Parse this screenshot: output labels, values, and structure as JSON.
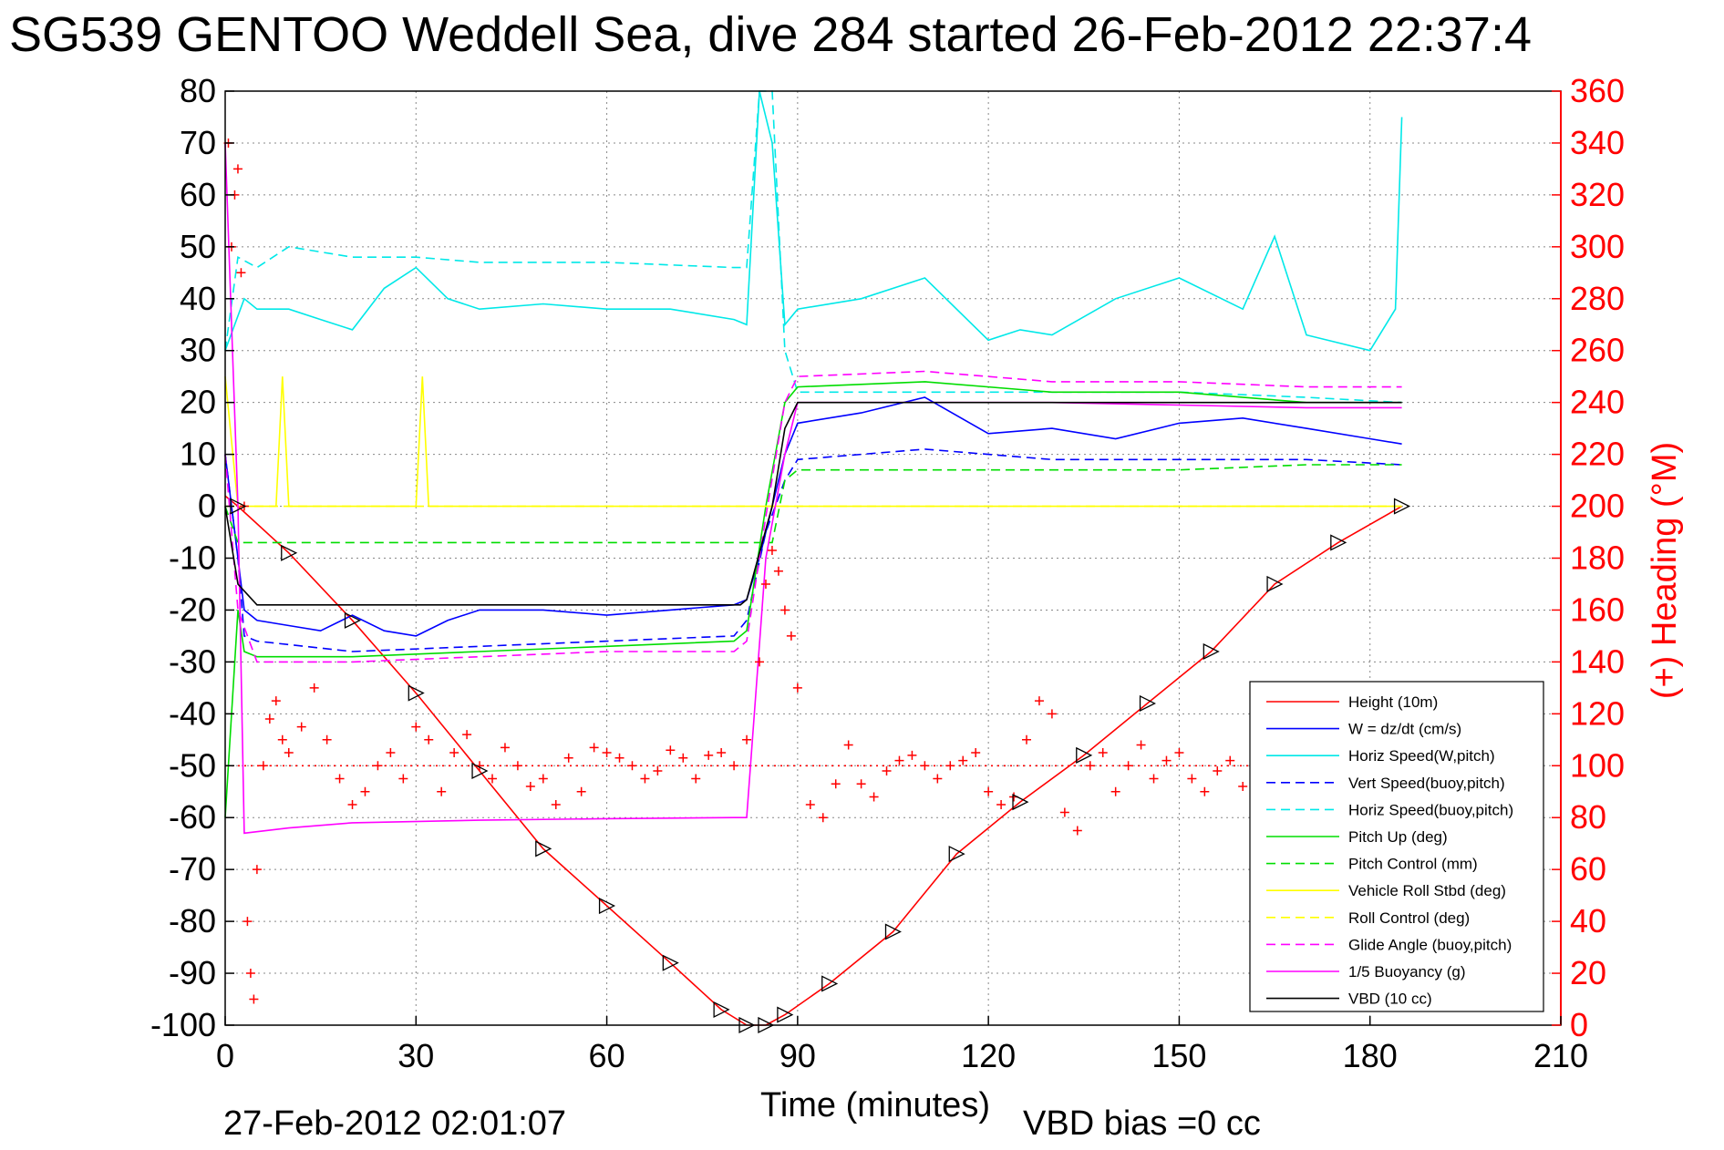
{
  "chart_data": {
    "type": "line",
    "title": "SG539 GENTOO Weddell Sea, dive 284 started 26-Feb-2012 22:37:4",
    "xlabel": "Time (minutes)",
    "ylabel_right": "(+) Heading (°M)",
    "xlim": [
      0,
      210
    ],
    "ylim_left": [
      -100,
      80
    ],
    "ylim_right": [
      0,
      360
    ],
    "x_ticks": [
      "0",
      "30",
      "60",
      "90",
      "120",
      "150",
      "180",
      "210"
    ],
    "y_ticks_left": [
      "80",
      "70",
      "60",
      "50",
      "40",
      "30",
      "20",
      "10",
      "0",
      "-10",
      "-20",
      "-30",
      "-40",
      "-50",
      "-60",
      "-70",
      "-80",
      "-90",
      "-100"
    ],
    "y_ticks_right": [
      "360",
      "340",
      "320",
      "300",
      "280",
      "260",
      "240",
      "220",
      "200",
      "180",
      "160",
      "140",
      "120",
      "100",
      "80",
      "60",
      "40",
      "20",
      "0"
    ],
    "grid": true,
    "legend_position": "lower-right",
    "footer_left": "27-Feb-2012 02:01:07",
    "footer_right": "VBD bias =0 cc",
    "series": [
      {
        "name": "Height (10m)",
        "color": "#ff0000",
        "style": "solid",
        "axis": "left",
        "x": [
          0,
          2,
          10,
          20,
          30,
          40,
          50,
          60,
          70,
          78,
          82,
          85,
          88,
          95,
          105,
          115,
          125,
          135,
          145,
          155,
          165,
          175,
          185
        ],
        "y": [
          2,
          0,
          -9,
          -22,
          -36,
          -51,
          -66,
          -77,
          -88,
          -97,
          -100,
          -100,
          -98,
          -92,
          -82,
          -67,
          -57,
          -48,
          -38,
          -28,
          -15,
          -7,
          0
        ]
      },
      {
        "name": "W = dz/dt (cm/s)",
        "color": "#0000ff",
        "style": "solid",
        "axis": "left",
        "x": [
          0,
          2,
          3,
          5,
          10,
          15,
          20,
          25,
          30,
          35,
          40,
          50,
          60,
          70,
          80,
          82,
          84,
          86,
          88,
          90,
          100,
          110,
          120,
          130,
          140,
          150,
          160,
          170,
          180,
          185
        ],
        "y": [
          10,
          -10,
          -20,
          -22,
          -23,
          -24,
          -21,
          -24,
          -25,
          -22,
          -20,
          -20,
          -21,
          -20,
          -19,
          -18,
          -10,
          0,
          10,
          16,
          18,
          21,
          14,
          15,
          13,
          16,
          17,
          15,
          13,
          12
        ]
      },
      {
        "name": "Horiz Speed(W,pitch)",
        "color": "#00e8e8",
        "style": "solid",
        "axis": "left",
        "x": [
          0,
          3,
          5,
          10,
          15,
          20,
          25,
          30,
          35,
          40,
          50,
          60,
          70,
          80,
          82,
          84,
          86,
          88,
          90,
          100,
          110,
          120,
          125,
          130,
          140,
          150,
          160,
          165,
          170,
          180,
          184,
          185
        ],
        "y": [
          30,
          40,
          38,
          38,
          36,
          34,
          42,
          46,
          40,
          38,
          39,
          38,
          38,
          36,
          35,
          80,
          70,
          35,
          38,
          40,
          44,
          32,
          34,
          33,
          40,
          44,
          38,
          52,
          33,
          30,
          38,
          75
        ]
      },
      {
        "name": "Vert Speed(buoy,pitch)",
        "color": "#0000ff",
        "style": "dash",
        "axis": "left",
        "x": [
          0,
          2,
          3,
          5,
          20,
          40,
          60,
          80,
          82,
          85,
          88,
          90,
          110,
          130,
          150,
          170,
          185
        ],
        "y": [
          10,
          -10,
          -25,
          -26,
          -28,
          -27,
          -26,
          -25,
          -22,
          -5,
          5,
          9,
          11,
          9,
          9,
          9,
          8
        ]
      },
      {
        "name": "Horiz Speed(buoy,pitch)",
        "color": "#00e8e8",
        "style": "dash",
        "axis": "left",
        "x": [
          0,
          2,
          5,
          10,
          20,
          30,
          40,
          60,
          80,
          82,
          84,
          86,
          88,
          90,
          110,
          130,
          150,
          170,
          185
        ],
        "y": [
          30,
          48,
          46,
          50,
          48,
          48,
          47,
          47,
          46,
          46,
          80,
          80,
          30,
          22,
          22,
          22,
          22,
          21,
          20
        ]
      },
      {
        "name": "Pitch Up (deg)",
        "color": "#00dd00",
        "style": "solid",
        "axis": "left",
        "x": [
          0,
          2,
          3,
          5,
          20,
          40,
          60,
          80,
          82,
          85,
          88,
          90,
          110,
          130,
          150,
          170,
          185
        ],
        "y": [
          -60,
          -20,
          -28,
          -29,
          -29,
          -28,
          -27,
          -26,
          -24,
          0,
          20,
          23,
          24,
          22,
          22,
          20,
          20
        ]
      },
      {
        "name": "Pitch Control (mm)",
        "color": "#00dd00",
        "style": "dash",
        "axis": "left",
        "x": [
          0,
          2,
          5,
          40,
          80,
          82,
          86,
          88,
          90,
          110,
          130,
          150,
          170,
          185
        ],
        "y": [
          0,
          -7,
          -7,
          -7,
          -7,
          -7,
          -7,
          5,
          7,
          7,
          7,
          7,
          8,
          8
        ]
      },
      {
        "name": "Vehicle Roll Stbd (deg)",
        "color": "#ffff00",
        "style": "solid",
        "axis": "left",
        "x": [
          0,
          2,
          5,
          8,
          9,
          10,
          20,
          30,
          31,
          32,
          40,
          60,
          80,
          90,
          100,
          120,
          140,
          160,
          180,
          185
        ],
        "y": [
          25,
          0,
          0,
          0,
          25,
          0,
          0,
          0,
          25,
          0,
          0,
          0,
          0,
          0,
          0,
          0,
          0,
          0,
          0,
          0
        ]
      },
      {
        "name": "Roll Control (deg)",
        "color": "#ffff00",
        "style": "dash",
        "axis": "left",
        "x": [
          0,
          5,
          20,
          40,
          60,
          80,
          90,
          120,
          150,
          180,
          185
        ],
        "y": [
          0,
          0,
          0,
          0,
          0,
          0,
          0,
          0,
          0,
          0,
          0
        ]
      },
      {
        "name": "Glide Angle (buoy,pitch)",
        "color": "#ff00ff",
        "style": "dash",
        "axis": "left",
        "x": [
          0,
          2,
          5,
          20,
          40,
          60,
          80,
          82,
          85,
          88,
          90,
          110,
          130,
          150,
          170,
          185
        ],
        "y": [
          10,
          -20,
          -30,
          -30,
          -29,
          -28,
          -28,
          -26,
          -2,
          20,
          25,
          26,
          24,
          24,
          23,
          23
        ]
      },
      {
        "name": "1/5 Buoyancy (g)",
        "color": "#ff00ff",
        "style": "solid",
        "axis": "left",
        "x": [
          0,
          2,
          3,
          10,
          20,
          40,
          60,
          80,
          82,
          85,
          88,
          90,
          110,
          130,
          150,
          170,
          185
        ],
        "y": [
          70,
          0,
          -63,
          -62,
          -61,
          -60.5,
          -60.2,
          -60,
          -60,
          -10,
          10,
          20,
          20,
          20,
          19.5,
          19,
          19
        ]
      },
      {
        "name": "VBD (10 cc)",
        "color": "#000000",
        "style": "solid",
        "axis": "left",
        "x": [
          0,
          2,
          5,
          40,
          81,
          82,
          86,
          88,
          90,
          185
        ],
        "y": [
          0,
          -15,
          -19,
          -19,
          -19,
          -18,
          0,
          15,
          20,
          20
        ]
      },
      {
        "name": "Heading",
        "color": "#ff0000",
        "style": "plus",
        "axis": "right",
        "x": [
          0.5,
          1,
          1.5,
          2,
          2.5,
          3,
          3.5,
          4,
          4.5,
          5,
          6,
          7,
          8,
          9,
          10,
          12,
          14,
          16,
          18,
          20,
          22,
          24,
          26,
          28,
          30,
          32,
          34,
          36,
          38,
          40,
          42,
          44,
          46,
          48,
          50,
          52,
          54,
          56,
          58,
          60,
          62,
          64,
          66,
          68,
          70,
          72,
          74,
          76,
          78,
          80,
          82,
          84,
          85,
          86,
          87,
          88,
          89,
          90,
          92,
          94,
          96,
          98,
          100,
          102,
          104,
          106,
          108,
          110,
          112,
          114,
          116,
          118,
          120,
          122,
          124,
          126,
          128,
          130,
          132,
          134,
          136,
          138,
          140,
          142,
          144,
          146,
          148,
          150,
          152,
          154,
          156,
          158,
          160,
          162
        ],
        "y": [
          340,
          300,
          320,
          330,
          290,
          200,
          40,
          20,
          10,
          60,
          100,
          118,
          125,
          110,
          105,
          115,
          130,
          110,
          95,
          85,
          90,
          100,
          105,
          95,
          115,
          110,
          90,
          105,
          112,
          100,
          95,
          107,
          100,
          92,
          95,
          85,
          103,
          90,
          107,
          105,
          103,
          100,
          95,
          98,
          106,
          103,
          95,
          104,
          105,
          100,
          110,
          140,
          170,
          183,
          175,
          160,
          150,
          130,
          85,
          80,
          93,
          108,
          93,
          88,
          98,
          102,
          104,
          100,
          95,
          100,
          102,
          105,
          90,
          85,
          88,
          110,
          125,
          120,
          82,
          75,
          100,
          105,
          90,
          100,
          108,
          95,
          102,
          105,
          95,
          90,
          98,
          102,
          92,
          105
        ]
      },
      {
        "name": "Heading ref",
        "color": "#ff0000",
        "style": "dot",
        "axis": "right",
        "x": [
          0,
          185
        ],
        "y": [
          100,
          100
        ]
      }
    ]
  }
}
